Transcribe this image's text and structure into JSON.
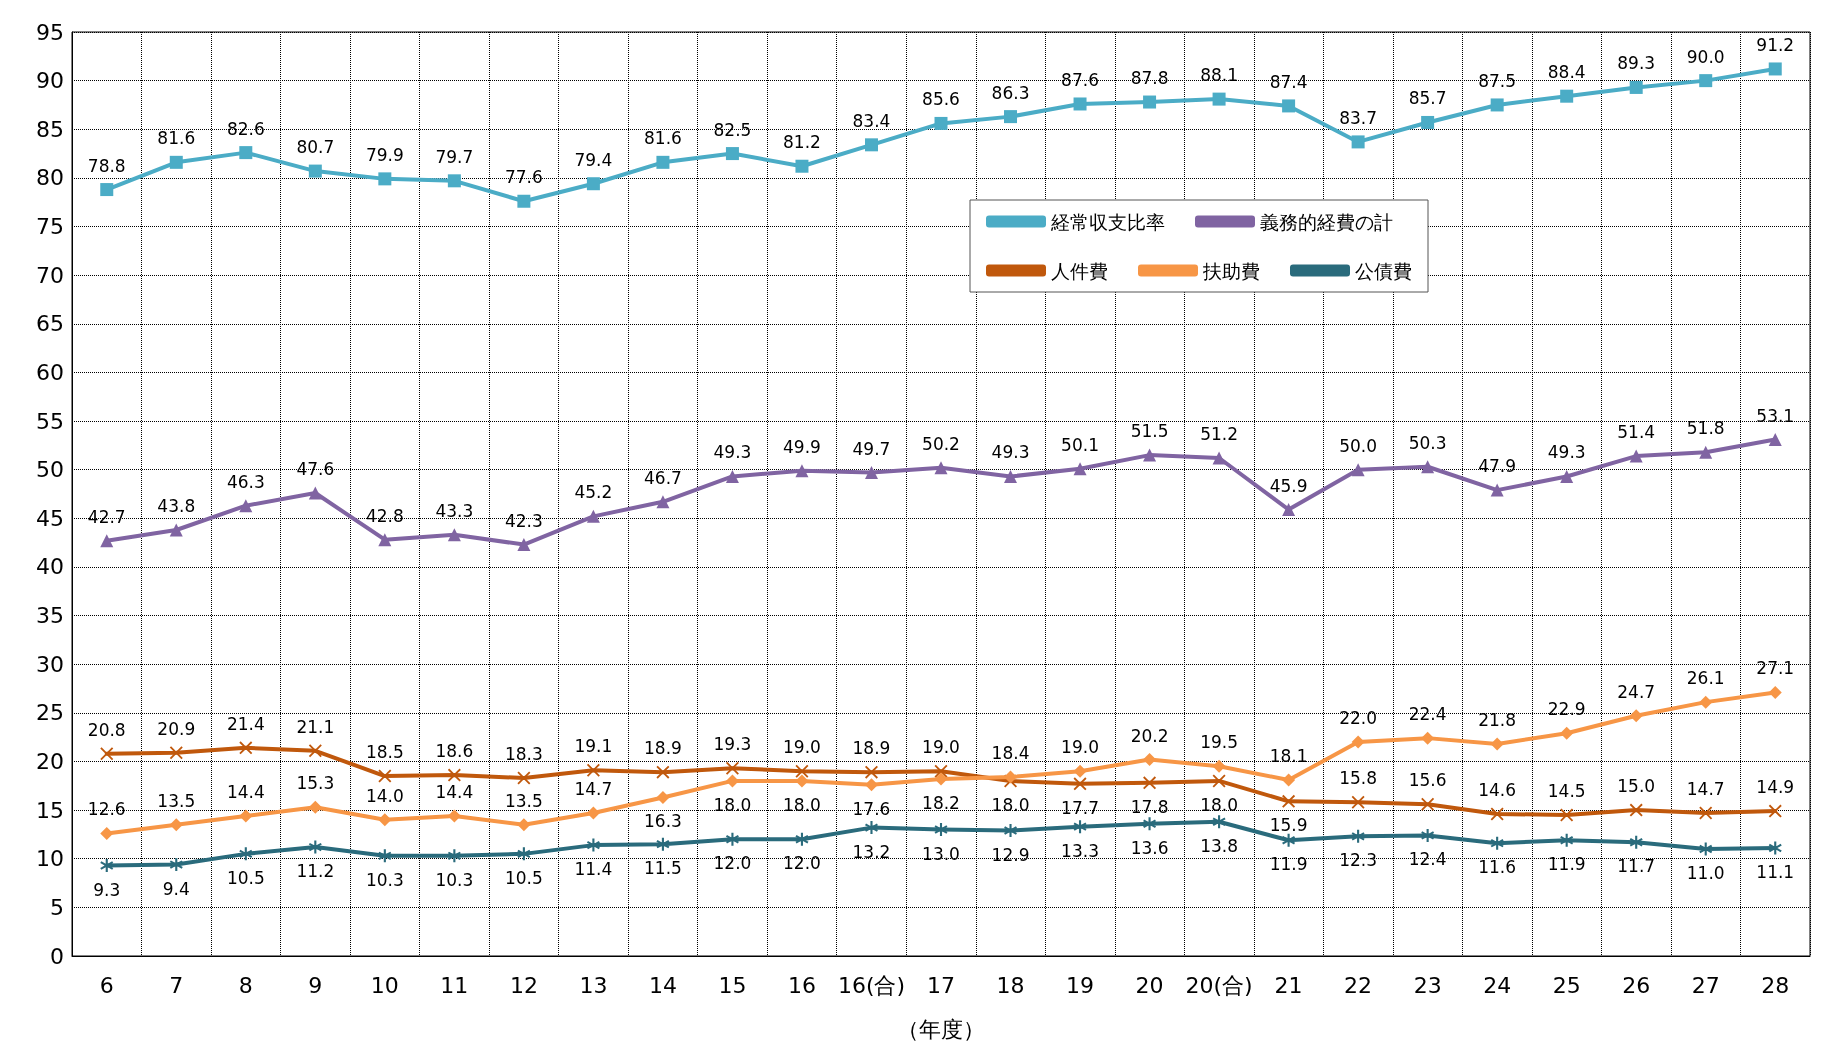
{
  "chart_data": {
    "type": "line",
    "xlabel": "（年度）",
    "categories": [
      "6",
      "7",
      "8",
      "9",
      "10",
      "11",
      "12",
      "13",
      "14",
      "15",
      "16",
      "16(合)",
      "17",
      "18",
      "19",
      "20",
      "20(合)",
      "21",
      "22",
      "23",
      "24",
      "25",
      "26",
      "27",
      "28"
    ],
    "series": [
      {
        "name": "経常収支比率",
        "color": "#4bacc6",
        "marker": "square",
        "values": [
          78.8,
          81.6,
          82.6,
          80.7,
          79.9,
          79.7,
          77.6,
          79.4,
          81.6,
          82.5,
          81.2,
          83.4,
          85.6,
          86.3,
          87.6,
          87.8,
          88.1,
          87.4,
          83.7,
          85.7,
          87.5,
          88.4,
          89.3,
          90.0,
          91.2
        ],
        "value_labels": [
          "78.8",
          "81.6",
          "82.6",
          "80.7",
          "79.9",
          "79.7",
          "77.6",
          "79.4",
          "81.6",
          "82.5",
          "81.2",
          "83.4",
          "85.6",
          "86.3",
          "87.6",
          "87.8",
          "88.1",
          "87.4",
          "83.7",
          "85.7",
          "87.5",
          "88.4",
          "89.3",
          "90.0",
          "91.2"
        ]
      },
      {
        "name": "義務的経費の計",
        "color": "#8064a2",
        "marker": "triangle",
        "values": [
          42.7,
          43.8,
          46.3,
          47.6,
          42.8,
          43.3,
          42.3,
          45.2,
          46.7,
          49.3,
          49.9,
          49.7,
          50.2,
          49.3,
          50.1,
          51.5,
          51.2,
          45.9,
          50.0,
          50.3,
          47.9,
          49.3,
          51.4,
          51.8,
          53.1
        ],
        "value_labels": [
          "42.7",
          "43.8",
          "46.3",
          "47.6",
          "42.8",
          "43.3",
          "42.3",
          "45.2",
          "46.7",
          "49.3",
          "49.9",
          "49.7",
          "50.2",
          "49.3",
          "50.1",
          "51.5",
          "51.2",
          "45.9",
          "50.0",
          "50.3",
          "47.9",
          "49.3",
          "51.4",
          "51.8",
          "53.1"
        ]
      },
      {
        "name": "人件費",
        "color": "#c0580c",
        "marker": "cross",
        "values": [
          20.8,
          20.9,
          21.4,
          21.1,
          18.5,
          18.6,
          18.3,
          19.1,
          18.9,
          19.3,
          19.0,
          18.9,
          19.0,
          18.0,
          17.7,
          17.8,
          18.0,
          15.9,
          15.8,
          15.6,
          14.6,
          14.5,
          15.0,
          14.7,
          14.9
        ],
        "value_labels": [
          "20.8",
          "20.9",
          "21.4",
          "21.1",
          "18.5",
          "18.6",
          "18.3",
          "19.1",
          "18.9",
          "19.3",
          "19.0",
          "18.9",
          "19.0",
          "18.0",
          "17.7",
          "17.8",
          "18.0",
          "15.9",
          "15.8",
          "15.6",
          "14.6",
          "14.5",
          "15.0",
          "14.7",
          "14.9"
        ]
      },
      {
        "name": "扶助費",
        "color": "#f79646",
        "marker": "diamond",
        "values": [
          12.6,
          13.5,
          14.4,
          15.3,
          14.0,
          14.4,
          13.5,
          14.7,
          16.3,
          18.0,
          18.0,
          17.6,
          18.2,
          18.4,
          19.0,
          20.2,
          19.5,
          18.1,
          22.0,
          22.4,
          21.8,
          22.9,
          24.7,
          26.1,
          27.1
        ],
        "value_labels": [
          "12.6",
          "13.5",
          "14.4",
          "15.3",
          "14.0",
          "14.4",
          "13.5",
          "14.7",
          "16.3",
          "18.0",
          "18.0",
          "17.6",
          "18.2",
          "18.4",
          "19.0",
          "20.2",
          "19.5",
          "18.1",
          "22.0",
          "22.4",
          "21.8",
          "22.9",
          "24.7",
          "26.1",
          "27.1"
        ]
      },
      {
        "name": "公債費",
        "color": "#2a6b7c",
        "marker": "star",
        "values": [
          9.3,
          9.4,
          10.5,
          11.2,
          10.3,
          10.3,
          10.5,
          11.4,
          11.5,
          12.0,
          12.0,
          13.2,
          13.0,
          12.9,
          13.3,
          13.6,
          13.8,
          11.9,
          12.3,
          12.4,
          11.6,
          11.9,
          11.7,
          11.0,
          11.1
        ],
        "value_labels": [
          "9.3",
          "9.4",
          "10.5",
          "11.2",
          "10.3",
          "10.3",
          "10.5",
          "11.4",
          "11.5",
          "12.0",
          "12.0",
          "13.2",
          "13.0",
          "12.9",
          "13.3",
          "13.6",
          "13.8",
          "11.9",
          "12.3",
          "12.4",
          "11.6",
          "11.9",
          "11.7",
          "11.0",
          "11.1"
        ]
      }
    ],
    "ylim": [
      0,
      95
    ],
    "yticks": [
      0,
      5,
      10,
      15,
      20,
      25,
      30,
      35,
      40,
      45,
      50,
      55,
      60,
      65,
      70,
      75,
      80,
      85,
      90,
      95
    ],
    "grid": true,
    "legend": "top",
    "line_style": "solid"
  }
}
